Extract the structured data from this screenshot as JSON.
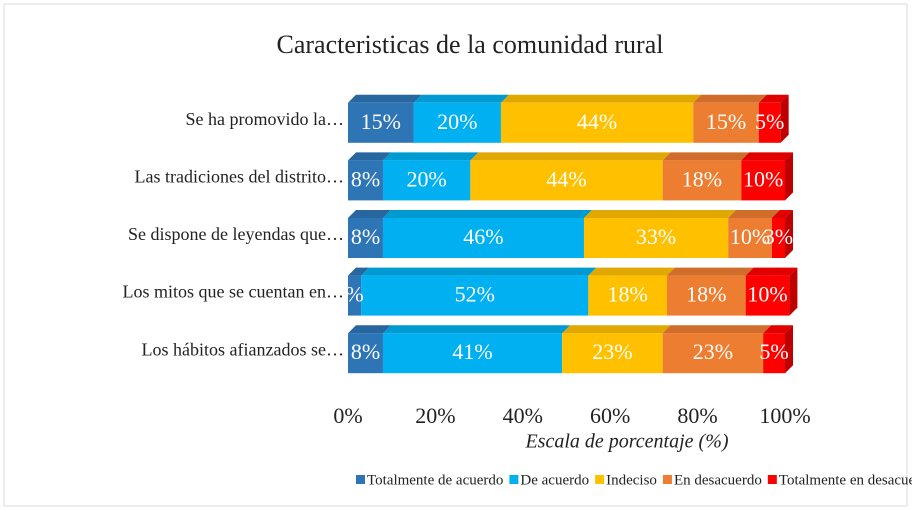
{
  "chart_data": {
    "type": "bar",
    "orientation": "horizontal",
    "stacked": true,
    "title": "Caracteristicas de la comunidad rural",
    "xlabel": "Escala de porcentaje (%)",
    "categories": [
      "Se ha promovido la…",
      "Las tradiciones del distrito…",
      "Se dispone de leyendas que…",
      "Los mitos que se cuentan en…",
      "Los hábitos afianzados se…"
    ],
    "series": [
      {
        "name": "Totalmente de acuerdo",
        "color": "#2e75b6",
        "values": [
          15,
          8,
          8,
          3,
          8
        ],
        "value_labels": [
          "15%",
          "8%",
          "8%",
          "%",
          "8%"
        ]
      },
      {
        "name": "De acuerdo",
        "color": "#00b0f0",
        "values": [
          20,
          20,
          46,
          52,
          41
        ],
        "value_labels": [
          "20%",
          "20%",
          "46%",
          "52%",
          "41%"
        ]
      },
      {
        "name": "Indeciso",
        "color": "#ffc000",
        "values": [
          44,
          44,
          33,
          18,
          23
        ],
        "value_labels": [
          "44%",
          "44%",
          "33%",
          "18%",
          "23%"
        ]
      },
      {
        "name": "En desacuerdo",
        "color": "#ed7d31",
        "values": [
          15,
          18,
          10,
          18,
          23
        ],
        "value_labels": [
          "15%",
          "18%",
          "10%",
          "18%",
          "23%"
        ]
      },
      {
        "name": "Totalmente en desacuerdo",
        "color": "#ff0000",
        "values": [
          5,
          10,
          3,
          10,
          5
        ],
        "value_labels": [
          "5%",
          "10%",
          "3%",
          "10%",
          "5%"
        ]
      }
    ],
    "xlim": [
      0,
      100
    ],
    "xticks": [
      {
        "value": 0,
        "label": "0%"
      },
      {
        "value": 20,
        "label": "20%"
      },
      {
        "value": 40,
        "label": "40%"
      },
      {
        "value": 60,
        "label": "60%"
      },
      {
        "value": 80,
        "label": "80%"
      },
      {
        "value": 100,
        "label": "100%"
      }
    ],
    "legend": "bottom"
  }
}
